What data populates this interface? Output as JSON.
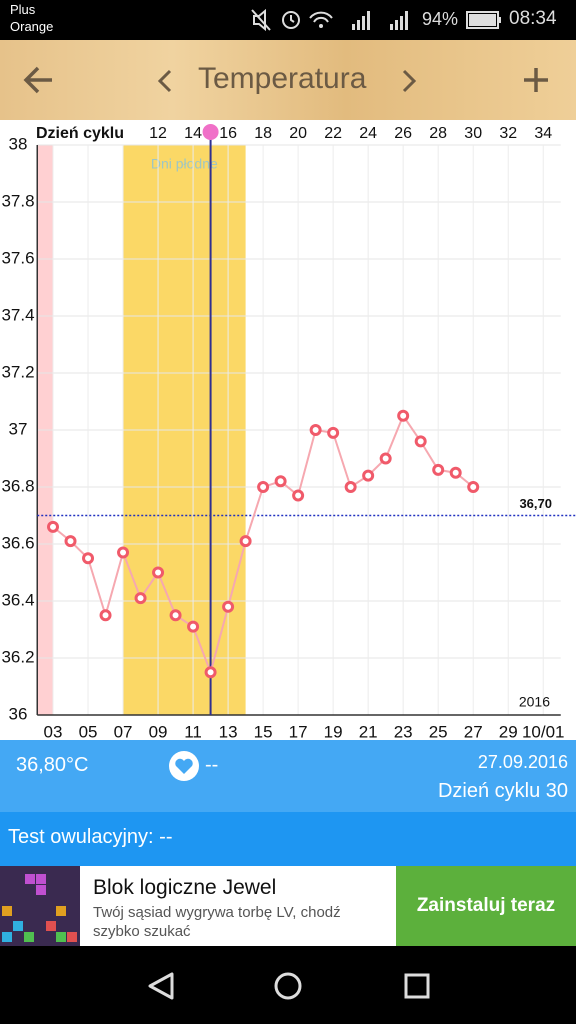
{
  "status_bar": {
    "carrier_line1": "Plus",
    "carrier_line2": "Orange",
    "battery": "94%",
    "time": "08:34"
  },
  "toolbar": {
    "title": "Temperatura"
  },
  "chart_data": {
    "type": "line",
    "x2_label": "Dzień cyklu",
    "x": [
      3,
      4,
      5,
      6,
      7,
      8,
      9,
      10,
      11,
      12,
      13,
      14,
      15,
      16,
      17,
      18,
      19,
      20,
      21,
      22,
      23,
      24,
      25,
      26,
      27
    ],
    "values": [
      36.66,
      36.61,
      36.55,
      36.35,
      36.57,
      36.41,
      36.5,
      36.35,
      36.31,
      36.15,
      36.38,
      36.61,
      36.8,
      36.82,
      36.77,
      37.0,
      36.99,
      36.8,
      36.84,
      36.9,
      37.05,
      36.96,
      36.86,
      36.85,
      36.8
    ],
    "color": "#f05a6a",
    "line_color": "#f6a8b0",
    "xlim": [
      2.1,
      32
    ],
    "xticks": [
      {
        "value": 3,
        "label": "03"
      },
      {
        "value": 5,
        "label": "05"
      },
      {
        "value": 7,
        "label": "07"
      },
      {
        "value": 9,
        "label": "09"
      },
      11,
      13,
      15,
      17,
      19,
      21,
      23,
      25,
      27,
      29,
      {
        "value": 31,
        "label": "10/01"
      }
    ],
    "x2ticks": [
      {
        "value": 9,
        "label": "12"
      },
      {
        "value": 11,
        "label": "14"
      },
      {
        "value": 13,
        "label": "16"
      },
      {
        "value": 15,
        "label": "18"
      },
      {
        "value": 17,
        "label": "20"
      },
      {
        "value": 19,
        "label": "22"
      },
      {
        "value": 21,
        "label": "24"
      },
      {
        "value": 23,
        "label": "26"
      },
      {
        "value": 25,
        "label": "28"
      },
      {
        "value": 27,
        "label": "30"
      },
      {
        "value": 29,
        "label": "32"
      },
      {
        "value": 31,
        "label": "34"
      }
    ],
    "ylim": [
      36,
      38
    ],
    "yticks": [
      36,
      36.2,
      36.4,
      36.6,
      36.8,
      37,
      37.2,
      37.4,
      37.6,
      37.8,
      38
    ],
    "grid": true,
    "period_band": [
      2.1,
      3
    ],
    "fertile_window": {
      "label": "Dni płodne",
      "start": 7,
      "end": 14
    },
    "ovulation_x": 12,
    "reference_line": {
      "value": 36.7,
      "label": "36,70"
    },
    "year": "2016"
  },
  "summary": {
    "temperature": "36,80°C",
    "heart": "--",
    "date": "27.09.2016",
    "cycle_day": "Dzień cyklu 30"
  },
  "ovulation_test": "Test owulacyjny: --",
  "ad": {
    "title": "Blok logiczne Jewel",
    "text_line1": "Twój sąsiad wygrywa torbę LV, chodź",
    "text_line2": "szybko szukać",
    "button": "Zainstaluj teraz"
  }
}
